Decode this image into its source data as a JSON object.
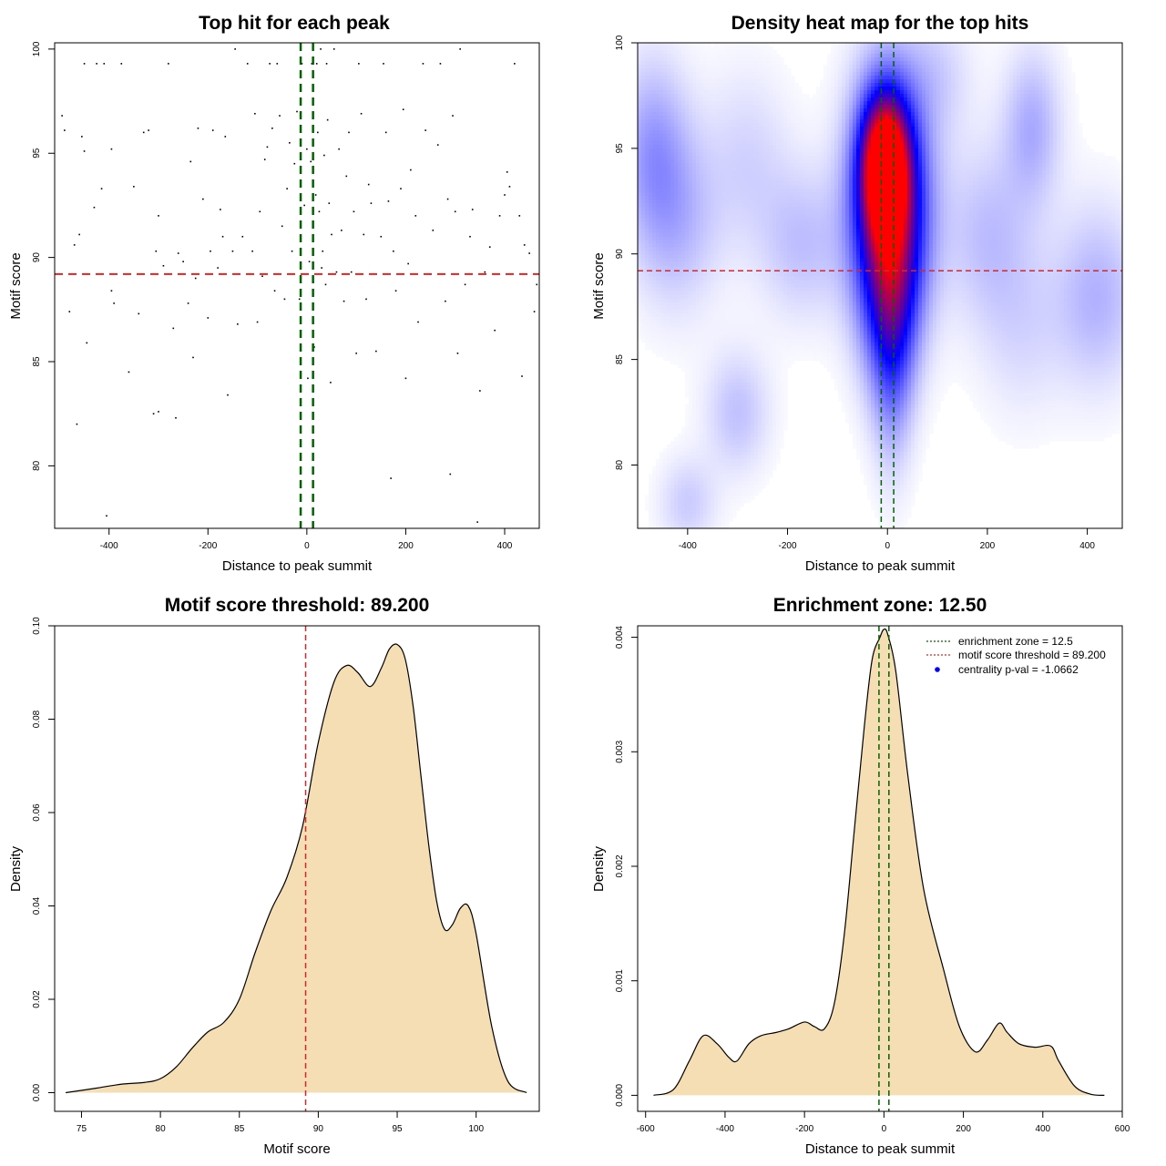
{
  "colors": {
    "threshold": "#d62728",
    "zone": "#006400",
    "fill": "#f5deb3",
    "heat_low": "#ffffff",
    "heat_mid": "#0000ff",
    "heat_high": "#ff0000"
  },
  "chart_data": [
    {
      "id": "scatter",
      "type": "scatter",
      "title": "Top hit for each peak",
      "xlabel": "Distance to peak summit",
      "ylabel": "Motif score",
      "xlim": [
        -510,
        470
      ],
      "ylim": [
        77.0,
        100.3
      ],
      "xticks": [
        -400,
        -200,
        0,
        200,
        400
      ],
      "xtick_labels": [
        "-400",
        "-200",
        "0",
        "200",
        "400"
      ],
      "yticks": [
        80,
        85,
        90,
        95,
        100
      ],
      "ytick_labels": [
        "80",
        "85",
        "90",
        "95",
        "100"
      ],
      "threshold": 89.2,
      "zone": [
        -12.5,
        12.5
      ],
      "points": [
        [
          -495,
          96.8
        ],
        [
          -490,
          96.1
        ],
        [
          -480,
          87.4
        ],
        [
          -470,
          90.6
        ],
        [
          -465,
          82.0
        ],
        [
          -460,
          91.1
        ],
        [
          -455,
          95.8
        ],
        [
          -450,
          95.1
        ],
        [
          -450,
          99.3
        ],
        [
          -445,
          85.9
        ],
        [
          -430,
          92.4
        ],
        [
          -425,
          99.3
        ],
        [
          -415,
          93.3
        ],
        [
          -410,
          99.3
        ],
        [
          -405,
          77.6
        ],
        [
          -395,
          88.4
        ],
        [
          -395,
          95.2
        ],
        [
          -390,
          87.8
        ],
        [
          -375,
          99.3
        ],
        [
          -360,
          84.5
        ],
        [
          -350,
          93.4
        ],
        [
          -340,
          87.3
        ],
        [
          -330,
          96.0
        ],
        [
          -320,
          96.1
        ],
        [
          -310,
          82.5
        ],
        [
          -305,
          90.3
        ],
        [
          -300,
          92.0
        ],
        [
          -300,
          82.6
        ],
        [
          -290,
          89.6
        ],
        [
          -280,
          99.3
        ],
        [
          -270,
          86.6
        ],
        [
          -265,
          82.3
        ],
        [
          -260,
          90.2
        ],
        [
          -250,
          89.8
        ],
        [
          -240,
          87.8
        ],
        [
          -235,
          94.6
        ],
        [
          -230,
          85.2
        ],
        [
          -225,
          89.0
        ],
        [
          -220,
          96.2
        ],
        [
          -210,
          92.8
        ],
        [
          -200,
          87.1
        ],
        [
          -195,
          90.3
        ],
        [
          -190,
          96.1
        ],
        [
          -180,
          89.5
        ],
        [
          -175,
          92.3
        ],
        [
          -170,
          91.0
        ],
        [
          -165,
          95.8
        ],
        [
          -160,
          83.4
        ],
        [
          -150,
          90.3
        ],
        [
          -145,
          100.0
        ],
        [
          -140,
          86.8
        ],
        [
          -130,
          91.0
        ],
        [
          -120,
          99.3
        ],
        [
          -110,
          90.3
        ],
        [
          -105,
          96.9
        ],
        [
          -100,
          86.9
        ],
        [
          -95,
          92.2
        ],
        [
          -90,
          89.1
        ],
        [
          -85,
          94.7
        ],
        [
          -80,
          95.3
        ],
        [
          -75,
          99.3
        ],
        [
          -70,
          96.2
        ],
        [
          -65,
          88.4
        ],
        [
          -60,
          99.3
        ],
        [
          -55,
          96.8
        ],
        [
          -50,
          91.5
        ],
        [
          -45,
          88.0
        ],
        [
          -40,
          93.3
        ],
        [
          -35,
          95.5
        ],
        [
          -30,
          90.3
        ],
        [
          -25,
          94.5
        ],
        [
          -20,
          97.0
        ],
        [
          -15,
          88.0
        ],
        [
          -10,
          99.3
        ],
        [
          -5,
          92.5
        ],
        [
          0,
          95.2
        ],
        [
          2,
          84.2
        ],
        [
          5,
          89.8
        ],
        [
          8,
          94.6
        ],
        [
          10,
          99.3
        ],
        [
          12,
          91.6
        ],
        [
          15,
          85.7
        ],
        [
          18,
          93.0
        ],
        [
          20,
          99.3
        ],
        [
          22,
          96.0
        ],
        [
          25,
          92.2
        ],
        [
          28,
          100.0
        ],
        [
          30,
          89.5
        ],
        [
          32,
          90.3
        ],
        [
          35,
          94.9
        ],
        [
          38,
          88.7
        ],
        [
          40,
          99.3
        ],
        [
          42,
          96.6
        ],
        [
          45,
          92.6
        ],
        [
          48,
          84.0
        ],
        [
          50,
          91.1
        ],
        [
          55,
          100.0
        ],
        [
          60,
          89.3
        ],
        [
          65,
          95.2
        ],
        [
          70,
          91.3
        ],
        [
          75,
          87.9
        ],
        [
          80,
          93.9
        ],
        [
          85,
          96.0
        ],
        [
          90,
          89.3
        ],
        [
          95,
          92.2
        ],
        [
          100,
          85.4
        ],
        [
          105,
          99.3
        ],
        [
          110,
          96.9
        ],
        [
          115,
          91.1
        ],
        [
          120,
          88.0
        ],
        [
          125,
          93.5
        ],
        [
          130,
          92.6
        ],
        [
          140,
          85.5
        ],
        [
          150,
          91.0
        ],
        [
          155,
          99.3
        ],
        [
          160,
          96.0
        ],
        [
          165,
          92.7
        ],
        [
          170,
          79.4
        ],
        [
          175,
          90.3
        ],
        [
          180,
          88.4
        ],
        [
          190,
          93.3
        ],
        [
          195,
          97.1
        ],
        [
          200,
          84.2
        ],
        [
          205,
          89.7
        ],
        [
          210,
          94.2
        ],
        [
          220,
          92.0
        ],
        [
          225,
          86.9
        ],
        [
          235,
          99.3
        ],
        [
          240,
          96.1
        ],
        [
          250,
          89.2
        ],
        [
          255,
          91.3
        ],
        [
          265,
          95.4
        ],
        [
          270,
          99.3
        ],
        [
          280,
          87.9
        ],
        [
          285,
          92.8
        ],
        [
          290,
          79.6
        ],
        [
          295,
          96.8
        ],
        [
          300,
          92.2
        ],
        [
          305,
          85.4
        ],
        [
          310,
          100.0
        ],
        [
          320,
          88.7
        ],
        [
          330,
          91.0
        ],
        [
          335,
          92.3
        ],
        [
          345,
          77.3
        ],
        [
          350,
          83.6
        ],
        [
          360,
          89.3
        ],
        [
          370,
          90.5
        ],
        [
          380,
          86.5
        ],
        [
          390,
          92.0
        ],
        [
          400,
          93.0
        ],
        [
          405,
          94.1
        ],
        [
          410,
          93.4
        ],
        [
          420,
          99.3
        ],
        [
          430,
          92.0
        ],
        [
          435,
          84.3
        ],
        [
          440,
          90.6
        ],
        [
          450,
          90.2
        ],
        [
          460,
          87.4
        ],
        [
          465,
          88.7
        ]
      ]
    },
    {
      "id": "heatmap",
      "type": "heatmap",
      "title": "Density heat map for the top hits",
      "xlabel": "Distance to peak summit",
      "ylabel": "Motif score",
      "xlim": [
        -500,
        470
      ],
      "ylim": [
        77.0,
        100.0
      ],
      "xticks": [
        -400,
        -200,
        0,
        200,
        400
      ],
      "xtick_labels": [
        "-400",
        "-200",
        "0",
        "200",
        "400"
      ],
      "yticks": [
        80,
        85,
        90,
        95,
        100
      ],
      "ytick_labels": [
        "80",
        "85",
        "90",
        "95",
        "100"
      ],
      "threshold": 89.2,
      "zone": [
        -12.5,
        12.5
      ],
      "blobs": [
        [
          -5,
          94.3,
          32,
          2.2,
          0.9
        ],
        [
          5,
          92.5,
          55,
          4.0,
          0.6
        ],
        [
          5,
          89.0,
          40,
          3.5,
          0.4
        ],
        [
          10,
          85.0,
          28,
          3.5,
          0.2
        ],
        [
          -470,
          95.0,
          50,
          3.0,
          0.18
        ],
        [
          -420,
          91.5,
          60,
          3.0,
          0.13
        ],
        [
          -300,
          82.5,
          45,
          2.0,
          0.12
        ],
        [
          -170,
          90.5,
          60,
          2.5,
          0.12
        ],
        [
          -280,
          94.5,
          60,
          3.0,
          0.08
        ],
        [
          200,
          91.0,
          60,
          3.0,
          0.12
        ],
        [
          290,
          96.0,
          40,
          2.5,
          0.16
        ],
        [
          420,
          88.0,
          60,
          3.0,
          0.15
        ],
        [
          -400,
          78.2,
          40,
          1.5,
          0.1
        ],
        [
          100,
          98.5,
          50,
          2.0,
          0.08
        ],
        [
          270,
          86.5,
          60,
          3.0,
          0.07
        ]
      ]
    },
    {
      "id": "score_density",
      "type": "area",
      "title": "Motif score threshold: 89.200",
      "xlabel": "Motif score",
      "ylabel": "Density",
      "xlim": [
        73.3,
        104.0
      ],
      "ylim": [
        -0.004,
        0.1
      ],
      "xticks": [
        75,
        80,
        85,
        90,
        95,
        100
      ],
      "xtick_labels": [
        "75",
        "80",
        "85",
        "90",
        "95",
        "100"
      ],
      "yticks": [
        0,
        0.02,
        0.04,
        0.06,
        0.08,
        0.1
      ],
      "ytick_labels": [
        "0.00",
        "0.02",
        "0.04",
        "0.06",
        "0.08",
        "0.10"
      ],
      "threshold": 89.2,
      "x": [
        74.0,
        76.0,
        77.5,
        79.0,
        80.0,
        81.0,
        82.0,
        83.0,
        84.0,
        85.0,
        86.0,
        87.0,
        88.0,
        89.0,
        90.0,
        91.0,
        91.8,
        92.5,
        93.3,
        94.0,
        94.5,
        95.0,
        95.5,
        96.0,
        96.5,
        97.0,
        97.5,
        98.0,
        98.5,
        99.0,
        99.5,
        100.0,
        101.0,
        102.0,
        103.2
      ],
      "y": [
        0.0,
        0.001,
        0.0018,
        0.0022,
        0.003,
        0.0055,
        0.0095,
        0.013,
        0.015,
        0.02,
        0.03,
        0.039,
        0.046,
        0.057,
        0.075,
        0.088,
        0.0915,
        0.09,
        0.087,
        0.091,
        0.095,
        0.096,
        0.093,
        0.083,
        0.068,
        0.053,
        0.041,
        0.035,
        0.036,
        0.0395,
        0.04,
        0.034,
        0.014,
        0.0025,
        0.0
      ]
    },
    {
      "id": "distance_density",
      "type": "area",
      "title": "Enrichment zone: 12.50",
      "xlabel": "Distance to peak summit",
      "ylabel": "Density",
      "xlim": [
        -620,
        600
      ],
      "ylim": [
        -0.00014,
        0.0041
      ],
      "xticks": [
        -600,
        -400,
        -200,
        0,
        200,
        400,
        600
      ],
      "xtick_labels": [
        "-600",
        "-400",
        "-200",
        "0",
        "200",
        "400",
        "600"
      ],
      "yticks": [
        0,
        0.001,
        0.002,
        0.003,
        0.004
      ],
      "ytick_labels": [
        "0.000",
        "0.001",
        "0.002",
        "0.003",
        "0.004"
      ],
      "zone": [
        -12.5,
        12.5
      ],
      "x": [
        -580,
        -530,
        -490,
        -455,
        -420,
        -390,
        -370,
        -340,
        -310,
        -270,
        -240,
        -200,
        -175,
        -150,
        -125,
        -100,
        -75,
        -50,
        -30,
        -10,
        0,
        10,
        30,
        60,
        100,
        150,
        190,
        230,
        260,
        290,
        310,
        340,
        380,
        420,
        440,
        480,
        520,
        555
      ],
      "y": [
        0.0,
        5e-05,
        0.0003,
        0.00052,
        0.00045,
        0.00033,
        0.0003,
        0.00045,
        0.00052,
        0.00055,
        0.00058,
        0.00064,
        0.0006,
        0.00058,
        0.0008,
        0.0014,
        0.0023,
        0.0032,
        0.0038,
        0.004,
        0.00407,
        0.00402,
        0.0037,
        0.0028,
        0.0018,
        0.0011,
        0.0006,
        0.00038,
        0.00048,
        0.00063,
        0.00055,
        0.00045,
        0.00042,
        0.00043,
        0.0003,
        8e-05,
        1e-05,
        0.0
      ],
      "legend": {
        "position": "top-right",
        "entries": [
          "enrichment zone = 12.5",
          "motif score threshold = 89.200",
          "centrality p-val = -1.0662"
        ]
      }
    }
  ]
}
